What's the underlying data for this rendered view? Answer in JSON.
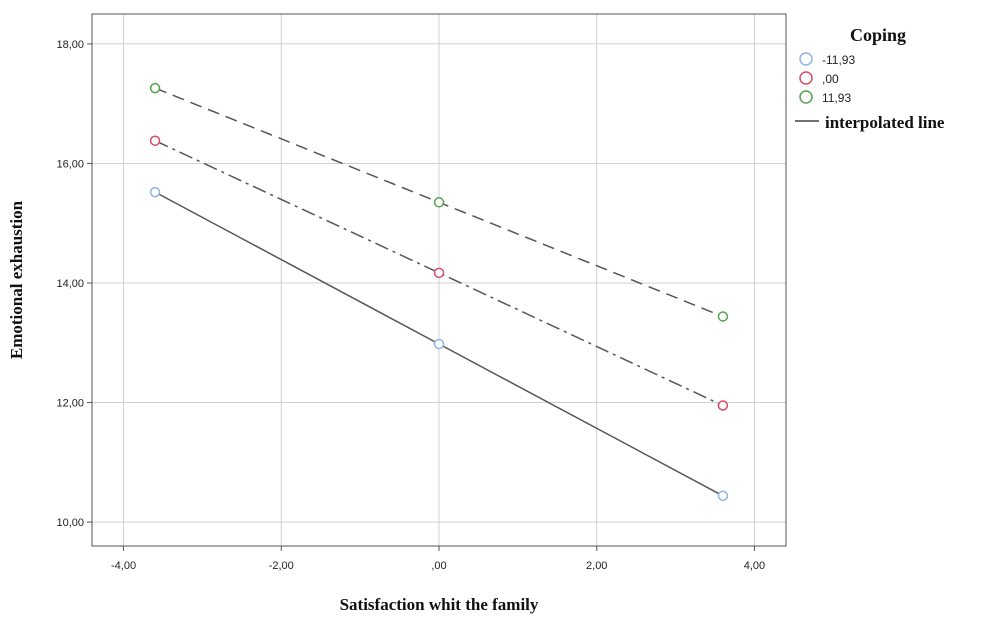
{
  "chart_data": {
    "type": "line",
    "xlabel": "Satisfaction whit the family",
    "ylabel": "Emotional exhaustion",
    "xlim": [
      -4.4,
      4.4
    ],
    "ylim": [
      9.6,
      18.5
    ],
    "x_ticks": [
      -4,
      -2,
      0,
      2,
      4
    ],
    "x_tick_labels": [
      "-4,00",
      "-2,00",
      ",00",
      "2,00",
      "4,00"
    ],
    "y_ticks": [
      10,
      12,
      14,
      16,
      18
    ],
    "y_tick_labels": [
      "10,00",
      "12,00",
      "14,00",
      "16,00",
      "18,00"
    ],
    "grid": true,
    "legend": {
      "title": "Coping",
      "placement": "right",
      "line_label": "interpolated line"
    },
    "x": [
      -3.6,
      0,
      3.6
    ],
    "series": [
      {
        "name": "-11,93",
        "values": [
          15.52,
          12.98,
          10.44
        ],
        "marker_color": "#8fb3e8",
        "line_style": "solid"
      },
      {
        "name": ",00",
        "values": [
          16.38,
          14.17,
          11.95
        ],
        "marker_color": "#d64b66",
        "line_style": "dashdot"
      },
      {
        "name": "11,93",
        "values": [
          17.26,
          15.35,
          13.44
        ],
        "marker_color": "#55a04f",
        "line_style": "dashed"
      }
    ]
  }
}
